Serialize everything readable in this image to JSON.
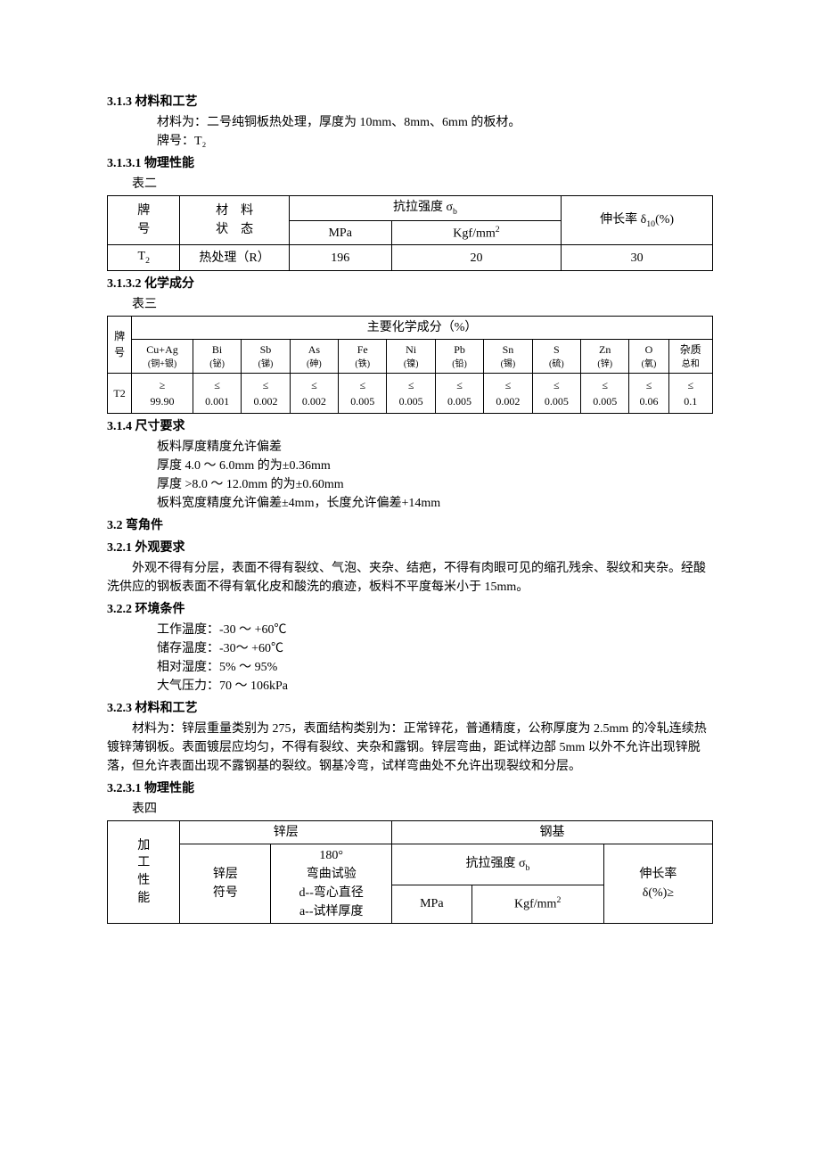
{
  "sec313": {
    "heading": "3.1.3 材料和工艺",
    "p1": "材料为：二号纯铜板热处理，厚度为 10mm、8mm、6mm 的板材。",
    "p2": "牌号：T₂"
  },
  "sec3131": {
    "heading": "3.1.3.1 物理性能",
    "caption": "表二",
    "table": {
      "h_grade": "牌",
      "h_grade2": "号",
      "h_state": "材　料",
      "h_state2": "状　态",
      "h_tensile": "抗拉强度 σ_b",
      "h_mpa": "MPa",
      "h_kgf": "Kgf/mm²",
      "h_elong": "伸长率 δ₁₀(%)",
      "r1_grade": "T₂",
      "r1_state": "热处理（R）",
      "r1_mpa": "196",
      "r1_kgf": "20",
      "r1_elong": "30"
    }
  },
  "sec3132": {
    "heading": "3.1.3.2 化学成分",
    "caption": "表三",
    "table": {
      "h_grade": "牌号",
      "h_main": "主要化学成分（%）",
      "cols": [
        {
          "el": "Cu+Ag",
          "cn": "(铜+银)"
        },
        {
          "el": "Bi",
          "cn": "(铋)"
        },
        {
          "el": "Sb",
          "cn": "(锑)"
        },
        {
          "el": "As",
          "cn": "(砷)"
        },
        {
          "el": "Fe",
          "cn": "(铁)"
        },
        {
          "el": "Ni",
          "cn": "(镍)"
        },
        {
          "el": "Pb",
          "cn": "(铅)"
        },
        {
          "el": "Sn",
          "cn": "(锡)"
        },
        {
          "el": "S",
          "cn": "(硫)"
        },
        {
          "el": "Zn",
          "cn": "(锌)"
        },
        {
          "el": "O",
          "cn": "(氧)"
        },
        {
          "el": "杂质",
          "cn": "总和"
        }
      ],
      "row": {
        "grade": "T2",
        "vals": [
          {
            "op": "≥",
            "v": "99.90"
          },
          {
            "op": "≤",
            "v": "0.001"
          },
          {
            "op": "≤",
            "v": "0.002"
          },
          {
            "op": "≤",
            "v": "0.002"
          },
          {
            "op": "≤",
            "v": "0.005"
          },
          {
            "op": "≤",
            "v": "0.005"
          },
          {
            "op": "≤",
            "v": "0.005"
          },
          {
            "op": "≤",
            "v": "0.002"
          },
          {
            "op": "≤",
            "v": "0.005"
          },
          {
            "op": "≤",
            "v": "0.005"
          },
          {
            "op": "≤",
            "v": "0.06"
          },
          {
            "op": "≤",
            "v": "0.1"
          }
        ]
      }
    }
  },
  "sec314": {
    "heading": "3.1.4 尺寸要求",
    "p1": "板料厚度精度允许偏差",
    "p2": "厚度 4.0 ～ 6.0mm 的为±0.36mm",
    "p3": "厚度 >8.0 ～ 12.0mm 的为±0.60mm",
    "p4": "板料宽度精度允许偏差±4mm，长度允许偏差+14mm"
  },
  "sec32": {
    "heading": "3.2 弯角件"
  },
  "sec321": {
    "heading": "3.2.1 外观要求",
    "p1": "外观不得有分层，表面不得有裂纹、气泡、夹杂、结疤，不得有肉眼可见的缩孔残余、裂纹和夹杂。经酸洗供应的钢板表面不得有氧化皮和酸洗的痕迹，板料不平度每米小于 15mm。"
  },
  "sec322": {
    "heading": "3.2.2 环境条件",
    "p1": "工作温度：-30 ～ +60℃",
    "p2": "储存温度：-30～ +60℃",
    "p3": "相对湿度：5% ～ 95%",
    "p4": "大气压力：70 ～ 106kPa"
  },
  "sec323": {
    "heading": "3.2.3 材料和工艺",
    "p1": "材料为：锌层重量类别为 275，表面结构类别为：正常锌花，普通精度，公称厚度为 2.5mm 的冷轧连续热镀锌薄钢板。表面镀层应均匀，不得有裂纹、夹杂和露钢。锌层弯曲，距试样边部 5mm 以外不允许出现锌脱落，但允许表面出现不露钢基的裂纹。钢基冷弯，试样弯曲处不允许出现裂纹和分层。"
  },
  "sec3231": {
    "heading": "3.2.3.1 物理性能",
    "caption": "表四",
    "table": {
      "h_proc": "加工性能",
      "h_zn": "锌层",
      "h_steel": "钢基",
      "h_znmark": "锌层符号",
      "h_bend1": "180°",
      "h_bend2": "弯曲试验",
      "h_bend3": "d--弯心直径",
      "h_bend4": "a--试样厚度",
      "h_tensile": "抗拉强度 σ_b",
      "h_mpa": "MPa",
      "h_kgf": "Kgf/mm²",
      "h_elong1": "伸长率",
      "h_elong2": "δ(%)≥"
    }
  }
}
